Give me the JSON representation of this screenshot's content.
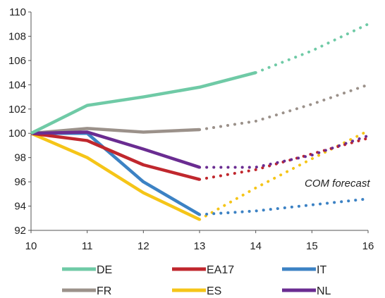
{
  "chart_data": {
    "type": "line",
    "x": [
      10,
      11,
      12,
      13,
      14,
      15,
      16
    ],
    "xlim": [
      10,
      16
    ],
    "ylim": [
      92,
      110
    ],
    "xticks": [
      "10",
      "11",
      "12",
      "13",
      "14",
      "15",
      "16"
    ],
    "yticks": [
      "92",
      "94",
      "96",
      "98",
      "100",
      "102",
      "104",
      "106",
      "108",
      "110"
    ],
    "title": "",
    "xlabel": "",
    "ylabel": "",
    "grid": false,
    "legend_position": "bottom",
    "annotation": "COM forecast",
    "series": [
      {
        "name": "DE",
        "color": "#6fcaa6",
        "values": [
          100,
          102.3,
          103.0,
          103.8,
          105.0,
          106.8,
          109.0
        ],
        "forecast_from": 14
      },
      {
        "name": "EA17",
        "color": "#c0272d",
        "values": [
          100,
          99.4,
          97.4,
          96.2,
          97.0,
          98.3,
          99.6
        ],
        "forecast_from": 13
      },
      {
        "name": "IT",
        "color": "#3c82c4",
        "values": [
          100,
          100.0,
          96.0,
          93.3,
          93.6,
          94.1,
          94.6
        ],
        "forecast_from": 13
      },
      {
        "name": "FR",
        "color": "#9b918a",
        "values": [
          100,
          100.4,
          100.1,
          100.3,
          101.0,
          102.4,
          104.0
        ],
        "forecast_from": 13
      },
      {
        "name": "ES",
        "color": "#f5c518",
        "values": [
          100,
          98.0,
          95.1,
          92.9,
          95.5,
          97.9,
          100.2
        ],
        "forecast_from": 13
      },
      {
        "name": "NL",
        "color": "#6a2c91",
        "values": [
          100,
          100.1,
          98.7,
          97.2,
          97.2,
          98.2,
          99.8
        ],
        "forecast_from": 13
      }
    ]
  }
}
